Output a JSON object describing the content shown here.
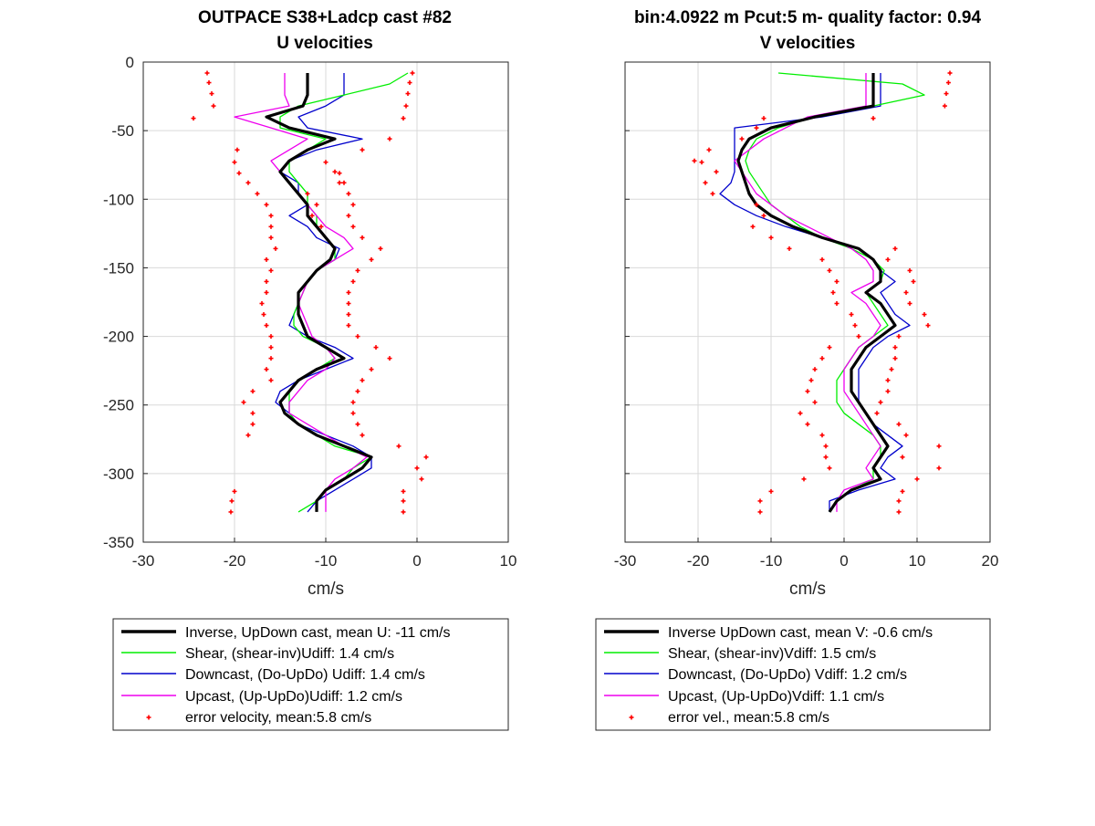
{
  "colors": {
    "inverse": "#000000",
    "shear": "#00ee00",
    "down": "#0000cc",
    "up": "#ee00ee",
    "err": "#ff0000",
    "grid": "#d9d9d9"
  },
  "chart_data": [
    {
      "type": "line",
      "title": "OUTPACE S38+Ladcp cast #82",
      "subtitle": "U velocities",
      "xlabel": "cm/s",
      "ylabel": "",
      "xlim": [
        -30,
        10
      ],
      "ylim": [
        -350,
        0
      ],
      "xticks": [
        "-30",
        "-20",
        "-10",
        "0",
        "10"
      ],
      "yticks": [
        "0",
        "-50",
        "-100",
        "-150",
        "-200",
        "-250",
        "-300",
        "-350"
      ],
      "grid": true,
      "legend_position": "below",
      "depth": [
        -8,
        -16,
        -24,
        -32,
        -40,
        -48,
        -56,
        -64,
        -72,
        -80,
        -88,
        -96,
        -104,
        -112,
        -120,
        -128,
        -136,
        -144,
        -152,
        -160,
        -168,
        -176,
        -184,
        -192,
        -200,
        -208,
        -216,
        -224,
        -232,
        -240,
        -248,
        -256,
        -264,
        -272,
        -280,
        -288,
        -296,
        -304,
        -312,
        -320,
        -328
      ],
      "series": [
        {
          "key": "inverse",
          "name": "Inverse, UpDown cast, mean U:  -11 cm/s",
          "values": [
            -12,
            -12,
            -12,
            -12.5,
            -16.5,
            -14,
            -9,
            -12,
            -14,
            -15,
            -14,
            -13,
            -12,
            -12,
            -11,
            -10,
            -9,
            -9.5,
            -11,
            -12,
            -13,
            -13,
            -13,
            -12.5,
            -12,
            -10,
            -8,
            -11,
            -13,
            -14,
            -15,
            -14.5,
            -13,
            -11,
            -8,
            -5,
            -6,
            -8,
            -10,
            -11,
            -11
          ]
        },
        {
          "key": "shear",
          "name": "Shear, (shear-inv)Udiff:  1.4 cm/s",
          "values": [
            -1,
            -3,
            -8,
            -13,
            -15,
            -15,
            -10,
            -12,
            -14,
            -14,
            -13,
            -12,
            -12,
            -11,
            -11,
            -10,
            -9,
            -9,
            -11,
            -12,
            -12.5,
            -13,
            -13.5,
            -13.5,
            -12.5,
            -10,
            -9,
            -11,
            -13,
            -14,
            -14,
            -14,
            -13,
            -11,
            -9,
            -5,
            -7,
            -8,
            -10,
            -11,
            -13
          ]
        },
        {
          "key": "down",
          "name": "Downcast, (Do-UpDo) Udiff:  1.4 cm/s",
          "values": [
            -8,
            -8,
            -8,
            -10,
            -13,
            -12,
            -6,
            -11,
            -14,
            -15,
            -13,
            -13,
            -12,
            -14,
            -12,
            -11,
            -8.5,
            -9,
            -11,
            -12,
            -13,
            -13,
            -13.5,
            -14,
            -12,
            -9,
            -7,
            -10,
            -13,
            -15,
            -15.5,
            -14,
            -13,
            -10,
            -7,
            -5,
            -5,
            -7,
            -9,
            -11,
            -12
          ]
        },
        {
          "key": "up",
          "name": "Upcast, (Up-UpDo)Udiff:  1.2 cm/s",
          "values": [
            -14.5,
            -14.5,
            -14.5,
            -14,
            -20,
            -16,
            -12,
            -14,
            -16,
            -15,
            -14,
            -13,
            -12,
            -11,
            -10,
            -8,
            -7,
            -9,
            -11,
            -12,
            -12.5,
            -13,
            -12.5,
            -12,
            -11.5,
            -10,
            -9,
            -10,
            -12,
            -13,
            -14,
            -14,
            -12,
            -10,
            -8,
            -5.5,
            -7,
            -9,
            -10,
            -10,
            -10
          ]
        }
      ],
      "error": {
        "name": "error velocity, mean:5.8 cm/s",
        "points": [
          [
            -23,
            -8
          ],
          [
            -22.8,
            -15
          ],
          [
            -22.5,
            -23
          ],
          [
            -22.3,
            -32
          ],
          [
            -24.5,
            -41
          ],
          [
            -19.7,
            -64
          ],
          [
            -20,
            -73
          ],
          [
            -19.5,
            -81
          ],
          [
            -18.5,
            -88
          ],
          [
            -17.5,
            -96
          ],
          [
            -16.5,
            -104
          ],
          [
            -16,
            -112
          ],
          [
            -16,
            -120
          ],
          [
            -16,
            -128
          ],
          [
            -15.5,
            -136
          ],
          [
            -16.5,
            -144
          ],
          [
            -16,
            -152
          ],
          [
            -16.5,
            -160
          ],
          [
            -16.5,
            -168
          ],
          [
            -17,
            -176
          ],
          [
            -16.8,
            -184
          ],
          [
            -16.5,
            -192
          ],
          [
            -16,
            -200
          ],
          [
            -16,
            -208
          ],
          [
            -16,
            -216
          ],
          [
            -16.5,
            -224
          ],
          [
            -16,
            -232
          ],
          [
            -18,
            -240
          ],
          [
            -19,
            -248
          ],
          [
            -18,
            -256
          ],
          [
            -18,
            -264
          ],
          [
            -18.5,
            -272
          ],
          [
            -20,
            -313
          ],
          [
            -20.3,
            -320
          ],
          [
            -20.4,
            -328
          ],
          [
            -0.5,
            -8
          ],
          [
            -0.8,
            -15
          ],
          [
            -1,
            -23
          ],
          [
            -1.2,
            -32
          ],
          [
            -1.5,
            -41
          ],
          [
            -3,
            -56
          ],
          [
            -6,
            -64
          ],
          [
            -10,
            -73
          ],
          [
            -8.5,
            -81
          ],
          [
            -8,
            -88
          ],
          [
            -7.5,
            -96
          ],
          [
            -7,
            -104
          ],
          [
            -7.5,
            -112
          ],
          [
            -7,
            -120
          ],
          [
            -6,
            -128
          ],
          [
            -4,
            -136
          ],
          [
            -5,
            -144
          ],
          [
            -6.5,
            -152
          ],
          [
            -7,
            -160
          ],
          [
            -7.5,
            -168
          ],
          [
            -7.5,
            -176
          ],
          [
            -7.5,
            -184
          ],
          [
            -7.5,
            -192
          ],
          [
            -6.5,
            -200
          ],
          [
            -4.5,
            -208
          ],
          [
            -3,
            -216
          ],
          [
            -5,
            -224
          ],
          [
            -6,
            -232
          ],
          [
            -6.5,
            -240
          ],
          [
            -7,
            -248
          ],
          [
            -7,
            -256
          ],
          [
            -6.5,
            -264
          ],
          [
            -6,
            -272
          ],
          [
            -2,
            -280
          ],
          [
            1,
            -288
          ],
          [
            0,
            -296
          ],
          [
            0.5,
            -304
          ],
          [
            -1.5,
            -313
          ],
          [
            -1.5,
            -320
          ],
          [
            -1.5,
            -328
          ],
          [
            -12,
            -96
          ],
          [
            -11,
            -104
          ],
          [
            -11.5,
            -112
          ],
          [
            -10.5,
            -120
          ],
          [
            -9,
            -80
          ],
          [
            -8.5,
            -88
          ]
        ]
      }
    },
    {
      "type": "line",
      "title": "bin:4.0922 m  Pcut:5 m- quality factor:  0.94",
      "subtitle": "V velocities",
      "xlabel": "cm/s",
      "ylabel": "",
      "xlim": [
        -30,
        20
      ],
      "ylim": [
        -350,
        0
      ],
      "xticks": [
        "-30",
        "-20",
        "-10",
        "0",
        "10",
        "20"
      ],
      "yticks": [],
      "grid": true,
      "legend_position": "below",
      "depth": [
        -8,
        -16,
        -24,
        -32,
        -40,
        -48,
        -56,
        -64,
        -72,
        -80,
        -88,
        -96,
        -104,
        -112,
        -120,
        -128,
        -136,
        -144,
        -152,
        -160,
        -168,
        -176,
        -184,
        -192,
        -200,
        -208,
        -216,
        -224,
        -232,
        -240,
        -248,
        -256,
        -264,
        -272,
        -280,
        -288,
        -296,
        -304,
        -312,
        -320,
        -328
      ],
      "series": [
        {
          "key": "inverse",
          "name": "Inverse UpDown cast, mean V:  -0.6 cm/s",
          "values": [
            4,
            4,
            4,
            4,
            -4,
            -10,
            -13,
            -14,
            -14.5,
            -14,
            -13.5,
            -13,
            -12,
            -10,
            -7,
            -3,
            2,
            4,
            5,
            5,
            3,
            5,
            6,
            7,
            5,
            3,
            2,
            1,
            1,
            1,
            2,
            3,
            4,
            5,
            6,
            5,
            4,
            5,
            1,
            -1,
            -2
          ]
        },
        {
          "key": "shear",
          "name": "Shear, (shear-inv)Vdiff:  1.5 cm/s",
          "values": [
            -9,
            8,
            11,
            4,
            -4,
            -9,
            -12,
            -13,
            -13.5,
            -13,
            -12,
            -11,
            -10,
            -8,
            -6,
            -3,
            1,
            4,
            5.5,
            5,
            3,
            4,
            5,
            6,
            4,
            2,
            1,
            0,
            -1,
            -1,
            -1,
            0,
            2,
            4,
            5,
            5,
            4,
            4,
            1,
            -1,
            -2
          ]
        },
        {
          "key": "down",
          "name": "Downcast, (Do-UpDo) Vdiff:  1.2 cm/s",
          "values": [
            5,
            5,
            5,
            5,
            -3,
            -15,
            -15,
            -15,
            -15,
            -15,
            -15.5,
            -17,
            -15,
            -12,
            -8,
            -3,
            2,
            4,
            5,
            7,
            5,
            6,
            7,
            9,
            6,
            4,
            3,
            2,
            2,
            2,
            2,
            3,
            4,
            6,
            8,
            6,
            5,
            7,
            2,
            -2,
            -2
          ]
        },
        {
          "key": "up",
          "name": "Upcast, (Up-UpDo)Vdiff:  1.1 cm/s",
          "values": [
            3,
            3,
            3,
            3,
            -5,
            -8,
            -11,
            -13,
            -15,
            -14,
            -13,
            -12,
            -10,
            -8,
            -5,
            -2,
            1,
            3,
            4,
            4,
            1,
            3,
            4,
            5,
            4,
            2,
            1,
            0,
            0,
            0,
            1,
            2,
            3,
            4,
            5,
            4,
            3,
            4,
            0,
            -1,
            -1
          ]
        }
      ],
      "error": {
        "name": "error vel., mean:5.8 cm/s",
        "points": [
          [
            -11,
            -41
          ],
          [
            -12,
            -48
          ],
          [
            -14,
            -56
          ],
          [
            -18.5,
            -64
          ],
          [
            -19.5,
            -73
          ],
          [
            -20.5,
            -72
          ],
          [
            -17.5,
            -80
          ],
          [
            -19,
            -88
          ],
          [
            -18,
            -96
          ],
          [
            -12,
            -104
          ],
          [
            -11,
            -112
          ],
          [
            -12.5,
            -120
          ],
          [
            -10,
            -128
          ],
          [
            -7.5,
            -136
          ],
          [
            -3,
            -144
          ],
          [
            -2,
            -152
          ],
          [
            -1,
            -160
          ],
          [
            -1.5,
            -168
          ],
          [
            -1,
            -176
          ],
          [
            1,
            -184
          ],
          [
            1.5,
            -192
          ],
          [
            2,
            -200
          ],
          [
            -2,
            -208
          ],
          [
            -3,
            -216
          ],
          [
            -4,
            -224
          ],
          [
            -4.5,
            -232
          ],
          [
            -5,
            -240
          ],
          [
            -4,
            -248
          ],
          [
            -6,
            -256
          ],
          [
            -5,
            -264
          ],
          [
            -3,
            -272
          ],
          [
            -2.5,
            -280
          ],
          [
            -2.5,
            -288
          ],
          [
            -2,
            -296
          ],
          [
            -5.5,
            -304
          ],
          [
            -10,
            -313
          ],
          [
            -11.5,
            -320
          ],
          [
            -11.5,
            -328
          ],
          [
            14.5,
            -8
          ],
          [
            14.3,
            -15
          ],
          [
            14,
            -23
          ],
          [
            13.8,
            -32
          ],
          [
            4,
            -41
          ],
          [
            7,
            -136
          ],
          [
            6,
            -144
          ],
          [
            9,
            -152
          ],
          [
            9.5,
            -160
          ],
          [
            8.5,
            -168
          ],
          [
            9,
            -176
          ],
          [
            11,
            -184
          ],
          [
            11.5,
            -192
          ],
          [
            7.5,
            -200
          ],
          [
            7,
            -208
          ],
          [
            7,
            -216
          ],
          [
            6.5,
            -224
          ],
          [
            6,
            -232
          ],
          [
            6,
            -240
          ],
          [
            4.5,
            -256
          ],
          [
            7.5,
            -264
          ],
          [
            8.5,
            -272
          ],
          [
            13,
            -280
          ],
          [
            8,
            -288
          ],
          [
            13,
            -296
          ],
          [
            10,
            -304
          ],
          [
            8,
            -313
          ],
          [
            7.5,
            -320
          ],
          [
            7.5,
            -328
          ],
          [
            5,
            -248
          ]
        ]
      }
    }
  ]
}
